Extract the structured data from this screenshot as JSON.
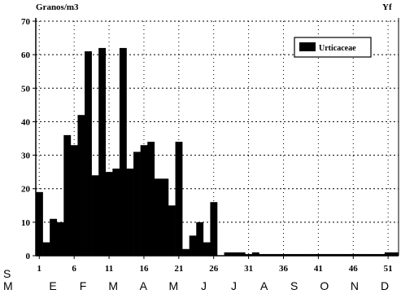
{
  "chart_data": {
    "type": "bar",
    "ylabel": "Granos/m3",
    "corner_label": "Yf",
    "ylim": [
      0,
      70
    ],
    "yticks": [
      0,
      10,
      20,
      30,
      40,
      50,
      60,
      70
    ],
    "week_ticks": [
      "1",
      "6",
      "11",
      "16",
      "21",
      "26",
      "31",
      "36",
      "41",
      "46",
      "51"
    ],
    "row_label_s": "S",
    "row_label_m": "M",
    "months": [
      "E",
      "F",
      "M",
      "A",
      "M",
      "J",
      "J",
      "A",
      "S",
      "O",
      "N",
      "D"
    ],
    "grid": true,
    "legend_position": "top-right",
    "bar_color": "#000000",
    "series": [
      {
        "name": "Urticaceae",
        "x": [
          1,
          2,
          3,
          4,
          5,
          6,
          7,
          8,
          9,
          10,
          11,
          12,
          13,
          14,
          15,
          16,
          17,
          18,
          19,
          20,
          21,
          22,
          23,
          24,
          25,
          26,
          27,
          28,
          29,
          30,
          31,
          32,
          33,
          34,
          35,
          36,
          37,
          38,
          39,
          40,
          41,
          42,
          43,
          44,
          45,
          46,
          47,
          48,
          49,
          50,
          51,
          52
        ],
        "values": [
          19,
          4,
          11,
          10,
          36,
          33,
          42,
          61,
          24,
          62,
          25,
          26,
          62,
          26,
          31,
          33,
          34,
          23,
          23,
          15,
          34,
          2,
          6,
          10,
          4,
          16,
          0,
          1,
          1,
          1,
          0.5,
          1,
          0.5,
          0.5,
          0.5,
          0.5,
          0.5,
          0.5,
          0.5,
          0.5,
          0.5,
          0.5,
          0.5,
          0.5,
          0.5,
          0.5,
          0.5,
          0.5,
          0.5,
          0.5,
          1,
          1
        ]
      }
    ]
  }
}
